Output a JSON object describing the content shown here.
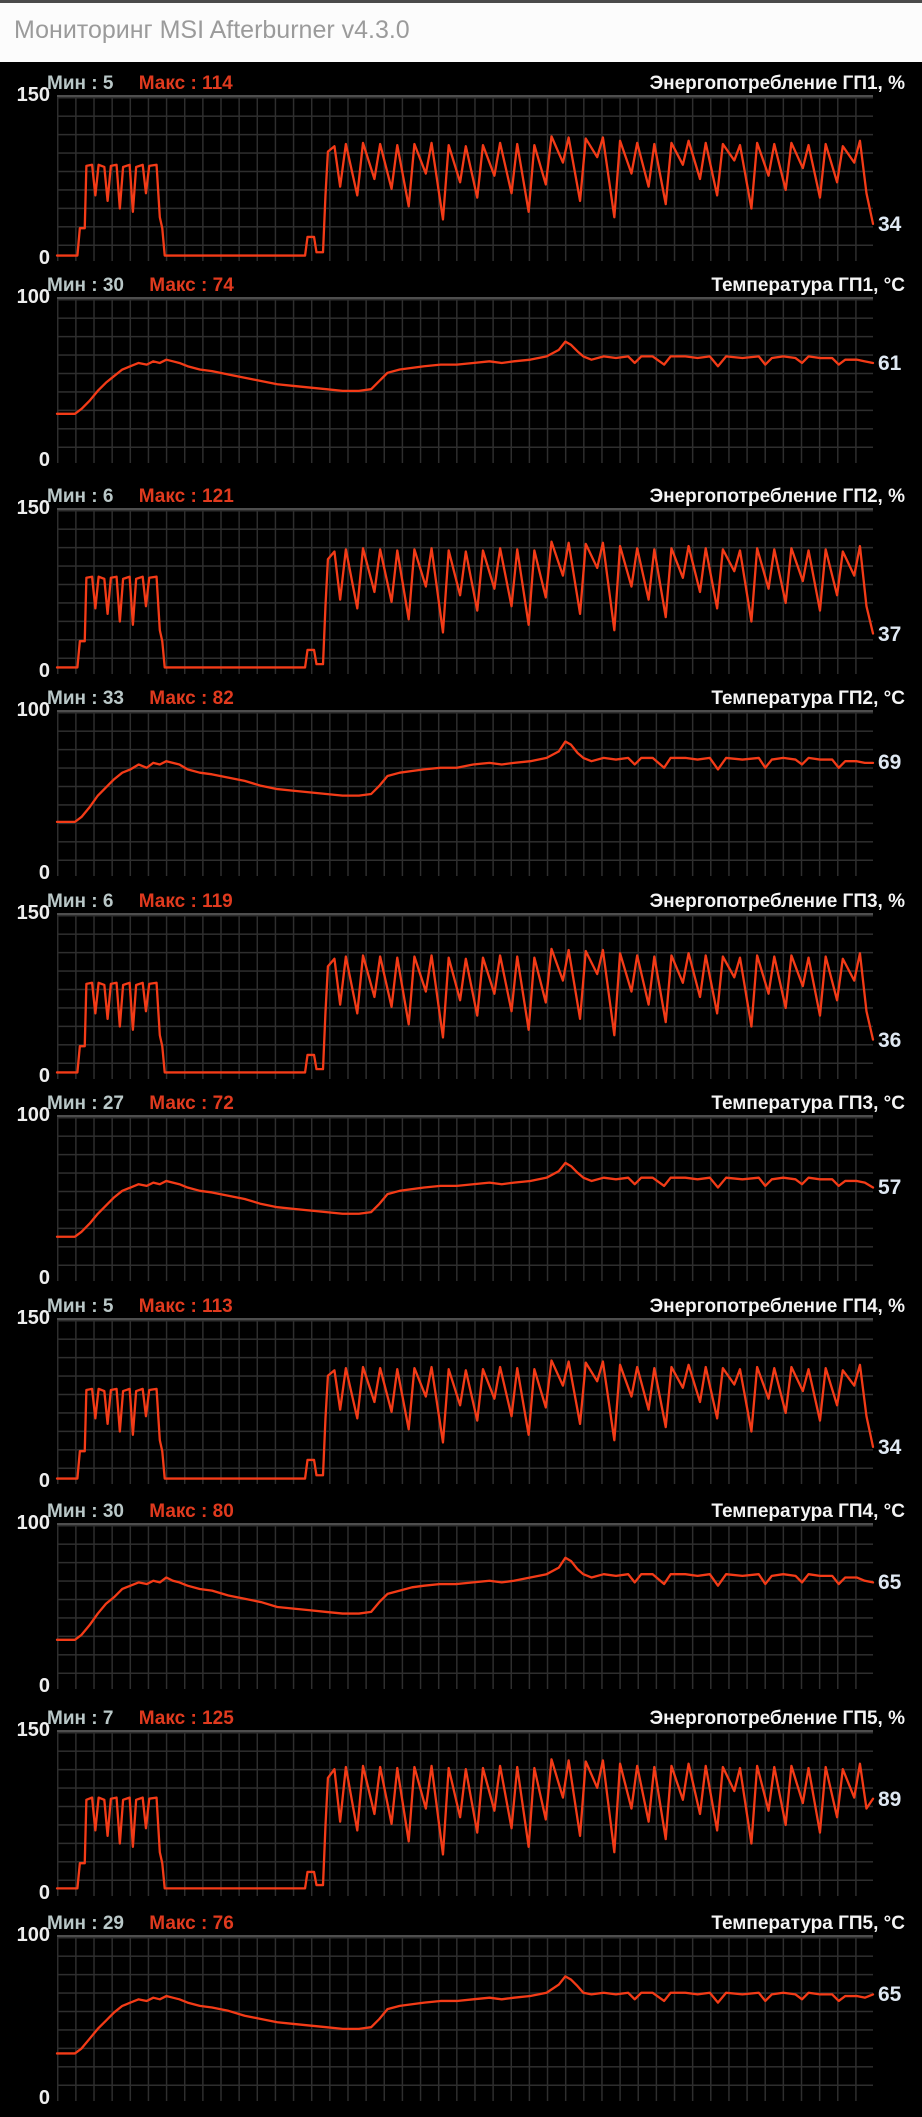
{
  "window": {
    "title": "Мониторинг MSI Afterburner v4.3.0"
  },
  "colors": {
    "bg": "#000000",
    "titlebar_bg": "#fcfcfc",
    "titlebar_text": "#9b9b9b",
    "line": "#f33b17",
    "grid": "#2e2e2e",
    "plot_border": "#4e4e4e",
    "stat_min": "#b9c7c7",
    "stat_max": "#e03a1e",
    "graph_title": "#f4f4f4",
    "axis_label": "#eeeeee",
    "value": "#dfe8f2"
  },
  "x_grids": {
    "power": [
      0,
      2.5,
      2.8,
      3.4,
      3.6,
      4.3,
      4.7,
      5.1,
      5.8,
      6.2,
      6.6,
      7.3,
      7.7,
      8.1,
      8.9,
      9.3,
      9.7,
      10.5,
      10.9,
      11.3,
      12.2,
      12.6,
      12.9,
      13.2,
      30.4,
      30.7,
      31.5,
      31.8,
      32.6,
      32.9,
      33.2,
      34,
      34.7,
      35.4,
      36.8,
      37.5,
      38.9,
      39.6,
      41,
      41.7,
      43.1,
      43.8,
      45.2,
      45.9,
      47.3,
      48,
      49.4,
      50.1,
      51.5,
      52.2,
      53.6,
      54.3,
      55.7,
      56.4,
      57.8,
      58.5,
      59.9,
      60.6,
      62,
      62.7,
      64.1,
      64.8,
      66.2,
      66.9,
      68.3,
      69,
      70.4,
      71.1,
      72.5,
      73.2,
      74.6,
      75.3,
      76.7,
      77.4,
      78.8,
      79.5,
      80.9,
      81.6,
      83,
      83.7,
      85.1,
      85.8,
      87.2,
      87.9,
      89.3,
      90,
      91.4,
      92.1,
      93.5,
      94.2,
      95.6,
      96.3,
      97.7,
      98.4,
      99.2,
      100
    ],
    "temp": [
      0,
      2.2,
      3,
      4,
      5,
      6,
      7,
      8,
      9,
      10,
      11,
      11.8,
      12.6,
      13.4,
      14.2,
      15,
      16,
      17.5,
      19,
      21,
      23,
      25,
      27,
      29,
      31,
      33,
      35,
      37,
      38.5,
      39.5,
      40.5,
      42,
      43.5,
      45,
      47,
      49,
      51,
      53,
      54.5,
      56,
      58,
      60,
      61.5,
      62.3,
      63,
      63.8,
      64.5,
      65.5,
      67,
      68.5,
      70,
      70.8,
      71.6,
      73,
      74.4,
      75.2,
      77,
      78.5,
      80,
      81,
      82,
      84,
      86,
      86.8,
      87.6,
      89,
      90.5,
      91.3,
      92.1,
      93.5,
      95,
      95.8,
      96.6,
      98,
      99,
      100
    ]
  },
  "chart_data": [
    {
      "type": "line",
      "title": "Энергопотребление ГП1, %",
      "stat_min_text": "Мин : 5",
      "stat_max_text": "Макс : 114",
      "min": 5,
      "max": 114,
      "current": 34,
      "current_label": "34",
      "ylim": [
        0,
        150
      ],
      "y_axis_top": "150",
      "y_axis_bottom": "0",
      "x_grid": "power",
      "values": [
        5,
        5,
        30,
        30,
        87,
        88,
        60,
        88,
        86,
        55,
        87,
        88,
        48,
        86,
        88,
        45,
        86,
        88,
        62,
        87,
        88,
        40,
        30,
        5,
        5,
        22,
        22,
        8,
        8,
        60,
        100,
        105,
        68,
        107,
        60,
        108,
        75,
        107,
        66,
        106,
        50,
        107,
        80,
        108,
        38,
        106,
        72,
        105,
        58,
        106,
        78,
        108,
        62,
        107,
        45,
        106,
        70,
        114,
        90,
        113,
        55,
        112,
        95,
        113,
        40,
        110,
        80,
        108,
        68,
        107,
        52,
        108,
        88,
        110,
        75,
        108,
        60,
        107,
        92,
        106,
        48,
        108,
        78,
        107,
        65,
        108,
        85,
        106,
        58,
        107,
        72,
        105,
        90,
        110,
        62,
        34
      ]
    },
    {
      "type": "line",
      "title": "Температура ГП1, °C",
      "stat_min_text": "Мин : 30",
      "stat_max_text": "Макс : 74",
      "min": 30,
      "max": 74,
      "current": 61,
      "current_label": "61",
      "ylim": [
        0,
        100
      ],
      "y_axis_top": "100",
      "y_axis_bottom": "0",
      "x_grid": "temp",
      "values": [
        30,
        30,
        33,
        38,
        44,
        49,
        53,
        57,
        59,
        61,
        60,
        62,
        61,
        63,
        62,
        61,
        59,
        57,
        56,
        54,
        52,
        50,
        48,
        47,
        46,
        45,
        44,
        44,
        45,
        50,
        55,
        57,
        58,
        59,
        60,
        60,
        61,
        62,
        61,
        62,
        63,
        65,
        69,
        74,
        72,
        68,
        65,
        63,
        65,
        64,
        65,
        61,
        65,
        65,
        60,
        65,
        65,
        64,
        65,
        59,
        65,
        64,
        65,
        60,
        64,
        65,
        64,
        61,
        65,
        64,
        64,
        60,
        63,
        63,
        62,
        61
      ]
    },
    {
      "type": "line",
      "title": "Энергопотребление ГП2, %",
      "stat_min_text": "Мин : 6",
      "stat_max_text": "Макс : 121",
      "min": 6,
      "max": 121,
      "current": 37,
      "current_label": "37",
      "ylim": [
        0,
        150
      ],
      "y_axis_top": "150",
      "y_axis_bottom": "0",
      "x_grid": "power",
      "values": [
        6,
        6,
        30,
        30,
        88,
        89,
        60,
        89,
        87,
        55,
        88,
        89,
        48,
        87,
        89,
        45,
        87,
        89,
        62,
        88,
        89,
        40,
        30,
        6,
        6,
        22,
        22,
        9,
        9,
        62,
        105,
        112,
        68,
        114,
        60,
        115,
        75,
        114,
        66,
        113,
        50,
        114,
        80,
        115,
        38,
        113,
        72,
        112,
        58,
        113,
        78,
        115,
        62,
        114,
        45,
        113,
        70,
        121,
        90,
        120,
        55,
        119,
        97,
        120,
        40,
        117,
        80,
        115,
        68,
        114,
        52,
        115,
        88,
        117,
        75,
        115,
        60,
        114,
        94,
        113,
        48,
        115,
        78,
        114,
        65,
        115,
        85,
        113,
        58,
        114,
        72,
        112,
        90,
        117,
        62,
        37
      ]
    },
    {
      "type": "line",
      "title": "Температура ГП2, °C",
      "stat_min_text": "Мин : 33",
      "stat_max_text": "Макс : 82",
      "min": 33,
      "max": 82,
      "current": 69,
      "current_label": "69",
      "ylim": [
        0,
        100
      ],
      "y_axis_top": "100",
      "y_axis_bottom": "0",
      "x_grid": "temp",
      "values": [
        33,
        33,
        36,
        42,
        49,
        54,
        59,
        63,
        65,
        68,
        66,
        69,
        68,
        70,
        69,
        68,
        65,
        63,
        62,
        60,
        58,
        55,
        53,
        52,
        51,
        50,
        49,
        49,
        50,
        55,
        61,
        63,
        64,
        65,
        66,
        66,
        68,
        69,
        68,
        69,
        70,
        72,
        76,
        82,
        80,
        75,
        72,
        70,
        72,
        71,
        72,
        68,
        72,
        72,
        66,
        72,
        72,
        71,
        72,
        65,
        72,
        71,
        72,
        66,
        71,
        72,
        71,
        68,
        72,
        71,
        71,
        66,
        70,
        70,
        69,
        69
      ]
    },
    {
      "type": "line",
      "title": "Энергопотребление ГП3, %",
      "stat_min_text": "Мин : 6",
      "stat_max_text": "Макс : 119",
      "min": 6,
      "max": 119,
      "current": 36,
      "current_label": "36",
      "ylim": [
        0,
        150
      ],
      "y_axis_top": "150",
      "y_axis_bottom": "0",
      "x_grid": "power",
      "values": [
        6,
        6,
        30,
        30,
        87,
        88,
        60,
        88,
        86,
        55,
        87,
        88,
        48,
        86,
        88,
        45,
        86,
        88,
        62,
        87,
        88,
        40,
        30,
        6,
        6,
        22,
        22,
        9,
        9,
        61,
        103,
        110,
        68,
        112,
        60,
        113,
        75,
        112,
        66,
        111,
        50,
        112,
        80,
        113,
        38,
        111,
        72,
        110,
        58,
        111,
        78,
        113,
        62,
        112,
        45,
        111,
        70,
        119,
        90,
        118,
        55,
        117,
        96,
        118,
        40,
        115,
        80,
        113,
        68,
        112,
        52,
        113,
        88,
        115,
        75,
        113,
        60,
        112,
        93,
        111,
        48,
        113,
        78,
        112,
        65,
        113,
        85,
        111,
        58,
        112,
        72,
        110,
        90,
        115,
        62,
        36
      ]
    },
    {
      "type": "line",
      "title": "Температура ГП3, °C",
      "stat_min_text": "Мин : 27",
      "stat_max_text": "Макс : 72",
      "min": 27,
      "max": 72,
      "current": 57,
      "current_label": "57",
      "ylim": [
        0,
        100
      ],
      "y_axis_top": "100",
      "y_axis_bottom": "0",
      "x_grid": "temp",
      "values": [
        27,
        27,
        30,
        35,
        41,
        46,
        51,
        55,
        57,
        59,
        58,
        60,
        59,
        61,
        60,
        59,
        57,
        55,
        54,
        52,
        50,
        47,
        45,
        44,
        43,
        42,
        41,
        41,
        42,
        47,
        53,
        55,
        56,
        57,
        58,
        58,
        59,
        60,
        59,
        60,
        61,
        63,
        67,
        72,
        70,
        66,
        63,
        61,
        63,
        62,
        63,
        59,
        63,
        63,
        58,
        63,
        63,
        62,
        63,
        57,
        63,
        62,
        63,
        58,
        62,
        63,
        62,
        59,
        63,
        62,
        62,
        58,
        61,
        61,
        60,
        57
      ]
    },
    {
      "type": "line",
      "title": "Энергопотребление ГП4, %",
      "stat_min_text": "Мин : 5",
      "stat_max_text": "Макс : 113",
      "min": 5,
      "max": 113,
      "current": 34,
      "current_label": "34",
      "ylim": [
        0,
        150
      ],
      "y_axis_top": "150",
      "y_axis_bottom": "0",
      "x_grid": "power",
      "values": [
        5,
        5,
        30,
        30,
        86,
        87,
        60,
        87,
        85,
        55,
        86,
        87,
        48,
        85,
        87,
        45,
        85,
        87,
        62,
        86,
        87,
        40,
        30,
        5,
        5,
        22,
        22,
        8,
        8,
        60,
        99,
        104,
        68,
        106,
        60,
        107,
        75,
        106,
        66,
        105,
        50,
        106,
        80,
        107,
        38,
        105,
        72,
        104,
        58,
        105,
        78,
        107,
        62,
        106,
        45,
        105,
        70,
        113,
        90,
        112,
        55,
        111,
        94,
        112,
        40,
        109,
        80,
        107,
        68,
        106,
        52,
        107,
        88,
        109,
        75,
        107,
        60,
        106,
        91,
        105,
        48,
        107,
        78,
        106,
        65,
        107,
        85,
        105,
        58,
        106,
        72,
        104,
        90,
        109,
        62,
        34
      ]
    },
    {
      "type": "line",
      "title": "Температура ГП4, °C",
      "stat_min_text": "Мин : 30",
      "stat_max_text": "Макс : 80",
      "min": 30,
      "max": 80,
      "current": 65,
      "current_label": "65",
      "ylim": [
        0,
        100
      ],
      "y_axis_top": "100",
      "y_axis_bottom": "0",
      "x_grid": "temp",
      "values": [
        30,
        30,
        33,
        39,
        46,
        52,
        56,
        61,
        63,
        65,
        64,
        66,
        65,
        68,
        66,
        65,
        63,
        61,
        60,
        57,
        55,
        53,
        50,
        49,
        48,
        47,
        46,
        46,
        47,
        53,
        58,
        60,
        62,
        63,
        64,
        64,
        65,
        66,
        65,
        66,
        68,
        70,
        74,
        80,
        78,
        73,
        70,
        68,
        70,
        69,
        70,
        65,
        70,
        70,
        64,
        70,
        70,
        69,
        70,
        63,
        70,
        69,
        70,
        64,
        69,
        70,
        69,
        65,
        70,
        69,
        69,
        64,
        68,
        68,
        66,
        65
      ]
    },
    {
      "type": "line",
      "title": "Энергопотребление ГП5, %",
      "stat_min_text": "Мин : 7",
      "stat_max_text": "Макс : 125",
      "min": 7,
      "max": 125,
      "current": 89,
      "current_label": "89",
      "ylim": [
        0,
        150
      ],
      "y_axis_top": "150",
      "y_axis_bottom": "0",
      "x_grid": "power",
      "values": [
        7,
        7,
        30,
        30,
        88,
        90,
        60,
        90,
        88,
        55,
        89,
        90,
        48,
        88,
        90,
        45,
        88,
        90,
        62,
        89,
        90,
        40,
        30,
        7,
        7,
        22,
        22,
        10,
        10,
        64,
        108,
        116,
        68,
        118,
        60,
        119,
        75,
        118,
        66,
        117,
        50,
        118,
        80,
        119,
        38,
        117,
        72,
        116,
        58,
        117,
        78,
        119,
        62,
        118,
        45,
        117,
        70,
        125,
        90,
        124,
        55,
        123,
        99,
        124,
        40,
        121,
        80,
        119,
        68,
        118,
        52,
        119,
        88,
        121,
        75,
        119,
        60,
        118,
        96,
        117,
        48,
        119,
        78,
        118,
        65,
        119,
        85,
        117,
        58,
        118,
        72,
        116,
        90,
        121,
        80,
        89
      ]
    },
    {
      "type": "line",
      "title": "Температура ГП5, °C",
      "stat_min_text": "Мин : 29",
      "stat_max_text": "Макс : 76",
      "min": 29,
      "max": 76,
      "current": 65,
      "current_label": "65",
      "ylim": [
        0,
        100
      ],
      "y_axis_top": "100",
      "y_axis_bottom": "0",
      "x_grid": "temp",
      "values": [
        29,
        29,
        32,
        38,
        44,
        49,
        54,
        58,
        60,
        62,
        61,
        63,
        62,
        64,
        63,
        62,
        60,
        58,
        57,
        55,
        52,
        50,
        48,
        47,
        46,
        45,
        44,
        44,
        45,
        50,
        56,
        58,
        59,
        60,
        61,
        61,
        62,
        63,
        62,
        63,
        64,
        66,
        71,
        76,
        74,
        70,
        66,
        65,
        66,
        65,
        66,
        62,
        66,
        66,
        61,
        66,
        66,
        65,
        66,
        60,
        66,
        65,
        66,
        61,
        65,
        66,
        65,
        62,
        66,
        65,
        65,
        61,
        64,
        64,
        63,
        65
      ]
    }
  ]
}
